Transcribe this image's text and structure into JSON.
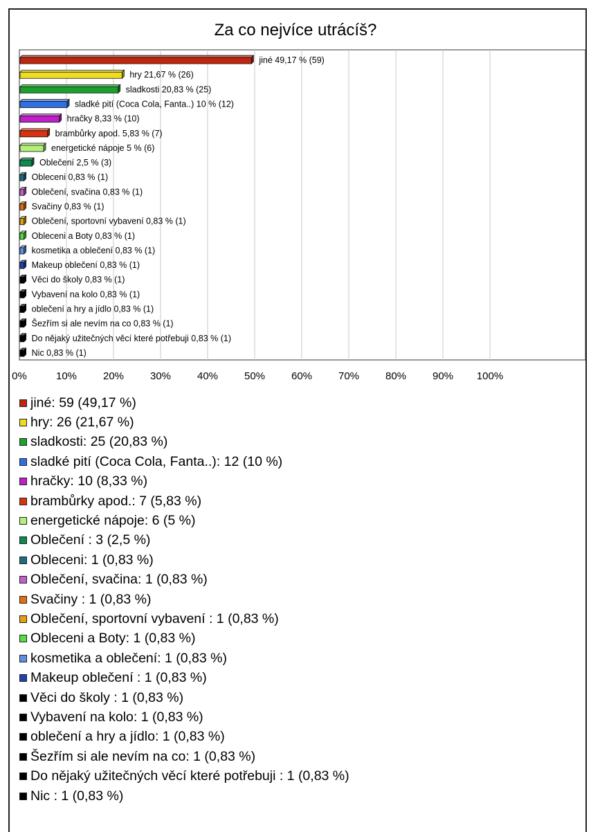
{
  "chart_data": {
    "type": "bar",
    "orientation": "horizontal",
    "title": "Za co nejvíce utrácíš?",
    "xlim": [
      0,
      100
    ],
    "x_ticks": [
      "0%",
      "10%",
      "20%",
      "30%",
      "40%",
      "50%",
      "60%",
      "70%",
      "80%",
      "90%",
      "100%"
    ],
    "grid": true,
    "categories": [
      "jiné",
      "hry",
      "sladkosti",
      "sladké pití (Coca Cola, Fanta..)",
      "hračky",
      "brambůrky apod.",
      "energetické nápoje",
      "Oblečení",
      "Obleceni",
      "Oblečení, svačina",
      "Svačiny",
      "Oblečení, sportovní vybavení",
      "Obleceni a Boty",
      "kosmetika a oblečení",
      "Makeup oblečení",
      "Věci do školy",
      "Vybavení na kolo",
      "oblečení a hry a jídlo",
      "Šezřím si ale nevím na co",
      "Do nějaký užitečných věcí které potřebuji",
      "Nic"
    ],
    "values": [
      49.17,
      21.67,
      20.83,
      10,
      8.33,
      5.83,
      5,
      2.5,
      0.83,
      0.83,
      0.83,
      0.83,
      0.83,
      0.83,
      0.83,
      0.83,
      0.83,
      0.83,
      0.83,
      0.83,
      0.83
    ],
    "counts": [
      59,
      26,
      25,
      12,
      10,
      7,
      6,
      3,
      1,
      1,
      1,
      1,
      1,
      1,
      1,
      1,
      1,
      1,
      1,
      1,
      1
    ],
    "bar_labels": [
      "jiné 49,17 % (59)",
      "hry 21,67 % (26)",
      "sladkosti 20,83 % (25)",
      "sladké pití (Coca Cola, Fanta..) 10 % (12)",
      "hračky 8,33 % (10)",
      "brambůrky apod. 5,83 % (7)",
      "energetické nápoje 5 % (6)",
      "Oblečení 2,5 % (3)",
      "Obleceni 0,83 % (1)",
      "Oblečení, svačina 0,83 % (1)",
      "Svačiny 0,83 % (1)",
      "Oblečení, sportovní vybavení 0,83 % (1)",
      "Obleceni a Boty 0,83 % (1)",
      "kosmetika a oblečení 0,83 % (1)",
      "Makeup oblečení 0,83 % (1)",
      "Věci do školy 0,83 % (1)",
      "Vybavení na kolo 0,83 % (1)",
      "oblečení a hry a jídlo 0,83 % (1)",
      "Šezřím si ale nevím na co 0,83 % (1)",
      "Do nějaký užitečných věcí které potřebuji 0,83 % (1)",
      "Nic 0,83 % (1)"
    ],
    "colors": [
      "#c0260f",
      "#f0dc1e",
      "#1aa32c",
      "#2f6fe0",
      "#c020c8",
      "#d8320e",
      "#b4f07a",
      "#0e8a4e",
      "#1a6e84",
      "#c060c8",
      "#e0700e",
      "#e0a010",
      "#50e040",
      "#6090e0",
      "#2040b0",
      "#000000",
      "#000000",
      "#000000",
      "#000000",
      "#000000",
      "#000000"
    ],
    "legend": [
      "jiné: 59 (49,17 %)",
      "hry: 26 (21,67 %)",
      "sladkosti: 25 (20,83 %)",
      "sladké pití (Coca Cola, Fanta..): 12 (10 %)",
      "hračky: 10 (8,33 %)",
      "brambůrky apod.: 7 (5,83 %)",
      "energetické nápoje: 6 (5 %)",
      "Oblečení : 3 (2,5 %)",
      "Obleceni: 1 (0,83 %)",
      "Oblečení, svačina: 1 (0,83 %)",
      "Svačiny : 1 (0,83 %)",
      "Oblečení, sportovní vybavení : 1 (0,83 %)",
      "Obleceni a Boty: 1 (0,83 %)",
      "kosmetika a oblečení: 1 (0,83 %)",
      "Makeup oblečení : 1 (0,83 %)",
      "Věci do školy : 1 (0,83 %)",
      "Vybavení na kolo: 1 (0,83 %)",
      "oblečení a hry a jídlo: 1 (0,83 %)",
      "Šezřím si ale nevím na co: 1 (0,83 %)",
      "Do nějaký užitečných věcí které potřebuji : 1 (0,83 %)",
      "Nic : 1 (0,83 %)"
    ]
  }
}
